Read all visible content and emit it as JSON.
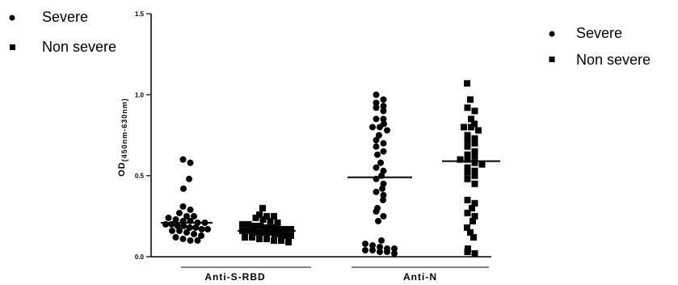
{
  "legend_left": [
    {
      "label": "Severe",
      "marker": "circle"
    },
    {
      "label": "Non severe",
      "marker": "square"
    }
  ],
  "legend_right": [
    {
      "label": "Severe",
      "marker": "circle"
    },
    {
      "label": "Non severe",
      "marker": "square"
    }
  ],
  "chart_data": {
    "type": "scatter",
    "title": "",
    "ylabel_main": "OD",
    "ylabel_sub": "(450nm-630nm)",
    "ylim": [
      0.0,
      1.5
    ],
    "yticks": [
      "0.0",
      "0.5",
      "1.0",
      "1.5"
    ],
    "yticks_values": [
      0.0,
      0.5,
      1.0,
      1.5
    ],
    "grid": false,
    "groups": [
      "Anti-S-RBD",
      "Anti-N"
    ],
    "marker_color": "#000000",
    "series": [
      {
        "group": "Anti-S-RBD",
        "marker": "circle",
        "median": 0.21,
        "values": [
          0.6,
          0.58,
          0.48,
          0.42,
          0.31,
          0.29,
          0.27,
          0.25,
          0.25,
          0.24,
          0.23,
          0.22,
          0.22,
          0.21,
          0.21,
          0.2,
          0.2,
          0.19,
          0.19,
          0.18,
          0.18,
          0.17,
          0.17,
          0.16,
          0.16,
          0.15,
          0.14,
          0.13,
          0.12,
          0.11,
          0.1,
          0.1
        ]
      },
      {
        "group": "Anti-S-RBD",
        "marker": "square",
        "median": 0.16,
        "values": [
          0.3,
          0.26,
          0.25,
          0.25,
          0.24,
          0.23,
          0.22,
          0.21,
          0.2,
          0.2,
          0.19,
          0.19,
          0.18,
          0.18,
          0.17,
          0.17,
          0.17,
          0.16,
          0.16,
          0.16,
          0.15,
          0.15,
          0.15,
          0.14,
          0.14,
          0.13,
          0.13,
          0.12,
          0.12,
          0.11,
          0.11,
          0.1,
          0.1,
          0.09
        ]
      },
      {
        "group": "Anti-N",
        "marker": "circle",
        "median": 0.49,
        "values": [
          1.0,
          0.97,
          0.95,
          0.93,
          0.92,
          0.9,
          0.85,
          0.85,
          0.82,
          0.8,
          0.8,
          0.78,
          0.75,
          0.72,
          0.7,
          0.68,
          0.65,
          0.63,
          0.58,
          0.55,
          0.53,
          0.5,
          0.48,
          0.45,
          0.42,
          0.4,
          0.38,
          0.35,
          0.3,
          0.28,
          0.25,
          0.22,
          0.1,
          0.08,
          0.07,
          0.06,
          0.05,
          0.05,
          0.04,
          0.04,
          0.03,
          0.03,
          0.02
        ]
      },
      {
        "group": "Anti-N",
        "marker": "square",
        "median": 0.59,
        "values": [
          1.07,
          0.97,
          0.92,
          0.9,
          0.85,
          0.82,
          0.8,
          0.8,
          0.78,
          0.75,
          0.73,
          0.72,
          0.7,
          0.68,
          0.65,
          0.63,
          0.62,
          0.6,
          0.6,
          0.58,
          0.57,
          0.55,
          0.53,
          0.52,
          0.5,
          0.48,
          0.45,
          0.35,
          0.33,
          0.3,
          0.27,
          0.25,
          0.22,
          0.18,
          0.15,
          0.12,
          0.05,
          0.03,
          0.02
        ]
      }
    ]
  }
}
